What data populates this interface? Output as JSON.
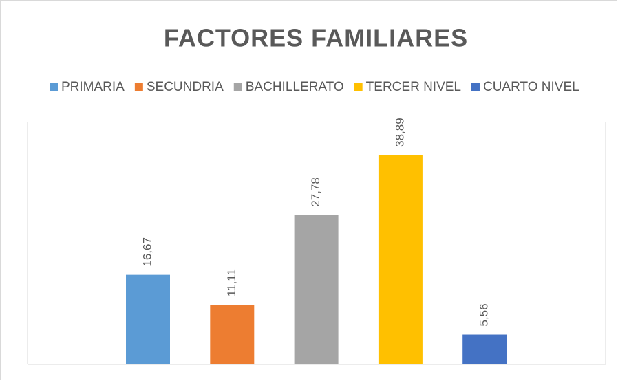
{
  "chart_data": {
    "type": "bar",
    "title": "FACTORES FAMILIARES",
    "series": [
      {
        "name": "PRIMARIA",
        "color": "#5b9bd5",
        "values": [
          16.67
        ],
        "value_labels": [
          "16,67"
        ]
      },
      {
        "name": "SECUNDRIA",
        "color": "#ed7d31",
        "values": [
          11.11
        ],
        "value_labels": [
          "11,11"
        ]
      },
      {
        "name": "BACHILLERATO",
        "color": "#a5a5a5",
        "values": [
          27.78
        ],
        "value_labels": [
          "27,78"
        ]
      },
      {
        "name": "TERCER NIVEL",
        "color": "#ffc000",
        "values": [
          38.89
        ],
        "value_labels": [
          "38,89"
        ]
      },
      {
        "name": "CUARTO NIVEL",
        "color": "#4472c4",
        "values": [
          5.56
        ],
        "value_labels": [
          "5,56"
        ]
      }
    ]
  }
}
